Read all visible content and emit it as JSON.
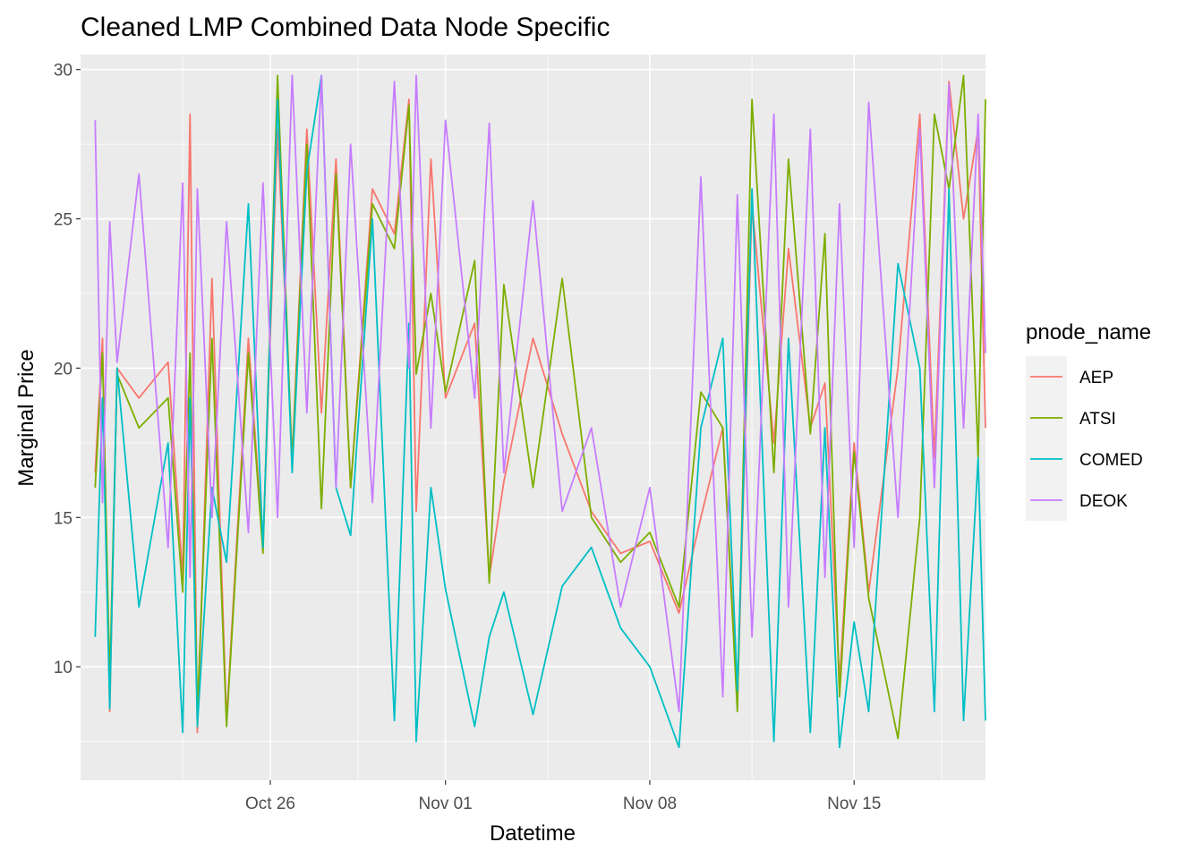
{
  "chart_data": {
    "type": "line",
    "title": "Cleaned LMP Combined Data Node Specific",
    "xlabel": "Datetime",
    "ylabel": "Marginal Price",
    "x_axis": {
      "kind": "date",
      "range": [
        "2024-10-19T12:00",
        "2024-11-19T12:00"
      ],
      "ticks": [
        {
          "date": "2024-10-26T00:00",
          "label": "Oct 26"
        },
        {
          "date": "2024-11-01T00:00",
          "label": "Nov 01"
        },
        {
          "date": "2024-11-08T00:00",
          "label": "Nov 08"
        },
        {
          "date": "2024-11-15T00:00",
          "label": "Nov 15"
        }
      ]
    },
    "y_axis": {
      "range": [
        6.2,
        30.5
      ],
      "ticks": [
        10,
        15,
        20,
        25,
        30
      ]
    },
    "grid": true,
    "panel_background": "#ebebeb",
    "legend": {
      "title": "pnode_name",
      "position": "right"
    },
    "series": [
      {
        "name": "AEP",
        "color": "#F8766D",
        "points": [
          [
            "2024-10-20T00:00",
            16.5
          ],
          [
            "2024-10-20T06:00",
            21.0
          ],
          [
            "2024-10-20T12:00",
            8.5
          ],
          [
            "2024-10-20T18:00",
            20.0
          ],
          [
            "2024-10-21T12:00",
            19.0
          ],
          [
            "2024-10-22T12:00",
            20.2
          ],
          [
            "2024-10-23T00:00",
            13.0
          ],
          [
            "2024-10-23T06:00",
            28.5
          ],
          [
            "2024-10-23T12:00",
            7.8
          ],
          [
            "2024-10-24T00:00",
            23.0
          ],
          [
            "2024-10-24T12:00",
            8.2
          ],
          [
            "2024-10-25T06:00",
            21.0
          ],
          [
            "2024-10-25T18:00",
            14.0
          ],
          [
            "2024-10-26T06:00",
            28.0
          ],
          [
            "2024-10-26T18:00",
            17.0
          ],
          [
            "2024-10-27T06:00",
            28.0
          ],
          [
            "2024-10-27T18:00",
            18.5
          ],
          [
            "2024-10-28T06:00",
            27.0
          ],
          [
            "2024-10-28T18:00",
            16.0
          ],
          [
            "2024-10-29T12:00",
            26.0
          ],
          [
            "2024-10-30T06:00",
            24.5
          ],
          [
            "2024-10-30T18:00",
            29.0
          ],
          [
            "2024-10-31T00:00",
            15.2
          ],
          [
            "2024-10-31T12:00",
            27.0
          ],
          [
            "2024-11-01T00:00",
            19.0
          ],
          [
            "2024-11-02T00:00",
            21.5
          ],
          [
            "2024-11-02T12:00",
            13.0
          ],
          [
            "2024-11-03T00:00",
            16.2
          ],
          [
            "2024-11-04T00:00",
            21.0
          ],
          [
            "2024-11-05T00:00",
            17.8
          ],
          [
            "2024-11-06T00:00",
            15.2
          ],
          [
            "2024-11-07T00:00",
            13.8
          ],
          [
            "2024-11-08T00:00",
            14.2
          ],
          [
            "2024-11-09T00:00",
            11.8
          ],
          [
            "2024-11-09T18:00",
            15.0
          ],
          [
            "2024-11-10T12:00",
            18.0
          ],
          [
            "2024-11-11T00:00",
            8.8
          ],
          [
            "2024-11-11T12:00",
            25.5
          ],
          [
            "2024-11-12T06:00",
            17.5
          ],
          [
            "2024-11-12T18:00",
            24.0
          ],
          [
            "2024-11-13T12:00",
            18.0
          ],
          [
            "2024-11-14T00:00",
            19.5
          ],
          [
            "2024-11-14T12:00",
            9.5
          ],
          [
            "2024-11-15T00:00",
            17.5
          ],
          [
            "2024-11-15T12:00",
            12.5
          ],
          [
            "2024-11-16T12:00",
            20.0
          ],
          [
            "2024-11-17T06:00",
            28.5
          ],
          [
            "2024-11-17T18:00",
            17.0
          ],
          [
            "2024-11-18T06:00",
            29.6
          ],
          [
            "2024-11-18T18:00",
            25.0
          ],
          [
            "2024-11-19T06:00",
            28.0
          ],
          [
            "2024-11-19T12:00",
            18.0
          ]
        ]
      },
      {
        "name": "ATSI",
        "color": "#7CAE00",
        "points": [
          [
            "2024-10-20T00:00",
            16.0
          ],
          [
            "2024-10-20T06:00",
            20.5
          ],
          [
            "2024-10-20T12:00",
            9.5
          ],
          [
            "2024-10-20T18:00",
            19.8
          ],
          [
            "2024-10-21T12:00",
            18.0
          ],
          [
            "2024-10-22T12:00",
            19.0
          ],
          [
            "2024-10-23T00:00",
            12.5
          ],
          [
            "2024-10-23T06:00",
            20.5
          ],
          [
            "2024-10-23T12:00",
            8.5
          ],
          [
            "2024-10-24T00:00",
            21.0
          ],
          [
            "2024-10-24T12:00",
            8.0
          ],
          [
            "2024-10-25T06:00",
            20.5
          ],
          [
            "2024-10-25T18:00",
            13.8
          ],
          [
            "2024-10-26T06:00",
            29.8
          ],
          [
            "2024-10-26T18:00",
            16.8
          ],
          [
            "2024-10-27T06:00",
            27.5
          ],
          [
            "2024-10-27T18:00",
            15.3
          ],
          [
            "2024-10-28T06:00",
            26.5
          ],
          [
            "2024-10-28T18:00",
            16.0
          ],
          [
            "2024-10-29T12:00",
            25.5
          ],
          [
            "2024-10-30T06:00",
            24.0
          ],
          [
            "2024-10-30T18:00",
            28.8
          ],
          [
            "2024-10-31T00:00",
            19.8
          ],
          [
            "2024-10-31T12:00",
            22.5
          ],
          [
            "2024-11-01T00:00",
            19.2
          ],
          [
            "2024-11-02T00:00",
            23.6
          ],
          [
            "2024-11-02T12:00",
            12.8
          ],
          [
            "2024-11-03T00:00",
            22.8
          ],
          [
            "2024-11-04T00:00",
            16.0
          ],
          [
            "2024-11-05T00:00",
            23.0
          ],
          [
            "2024-11-06T00:00",
            15.0
          ],
          [
            "2024-11-07T00:00",
            13.5
          ],
          [
            "2024-11-08T00:00",
            14.5
          ],
          [
            "2024-11-09T00:00",
            12.0
          ],
          [
            "2024-11-09T18:00",
            19.2
          ],
          [
            "2024-11-10T12:00",
            18.0
          ],
          [
            "2024-11-11T00:00",
            8.5
          ],
          [
            "2024-11-11T12:00",
            29.0
          ],
          [
            "2024-11-12T06:00",
            16.5
          ],
          [
            "2024-11-12T18:00",
            27.0
          ],
          [
            "2024-11-13T12:00",
            17.8
          ],
          [
            "2024-11-14T00:00",
            24.5
          ],
          [
            "2024-11-14T12:00",
            9.0
          ],
          [
            "2024-11-15T00:00",
            17.2
          ],
          [
            "2024-11-15T12:00",
            12.3
          ],
          [
            "2024-11-16T12:00",
            7.6
          ],
          [
            "2024-11-17T06:00",
            15.0
          ],
          [
            "2024-11-17T18:00",
            28.5
          ],
          [
            "2024-11-18T06:00",
            26.0
          ],
          [
            "2024-11-18T18:00",
            29.8
          ],
          [
            "2024-11-19T06:00",
            17.0
          ],
          [
            "2024-11-19T12:00",
            29.0
          ]
        ]
      },
      {
        "name": "COMED",
        "color": "#00BFC4",
        "points": [
          [
            "2024-10-20T00:00",
            11.0
          ],
          [
            "2024-10-20T06:00",
            19.0
          ],
          [
            "2024-10-20T12:00",
            8.6
          ],
          [
            "2024-10-20T18:00",
            20.0
          ],
          [
            "2024-10-21T12:00",
            12.0
          ],
          [
            "2024-10-22T12:00",
            17.5
          ],
          [
            "2024-10-23T00:00",
            7.8
          ],
          [
            "2024-10-23T06:00",
            19.0
          ],
          [
            "2024-10-23T12:00",
            8.0
          ],
          [
            "2024-10-24T00:00",
            16.0
          ],
          [
            "2024-10-24T12:00",
            13.5
          ],
          [
            "2024-10-25T06:00",
            25.5
          ],
          [
            "2024-10-25T18:00",
            14.0
          ],
          [
            "2024-10-26T06:00",
            29.0
          ],
          [
            "2024-10-26T18:00",
            16.5
          ],
          [
            "2024-10-27T06:00",
            26.6
          ],
          [
            "2024-10-27T18:00",
            29.8
          ],
          [
            "2024-10-28T06:00",
            16.0
          ],
          [
            "2024-10-28T18:00",
            14.4
          ],
          [
            "2024-10-29T12:00",
            25.0
          ],
          [
            "2024-10-30T06:00",
            8.2
          ],
          [
            "2024-10-30T18:00",
            21.5
          ],
          [
            "2024-10-31T00:00",
            7.5
          ],
          [
            "2024-10-31T12:00",
            16.0
          ],
          [
            "2024-11-01T00:00",
            12.6
          ],
          [
            "2024-11-02T00:00",
            8.0
          ],
          [
            "2024-11-02T12:00",
            11.0
          ],
          [
            "2024-11-03T00:00",
            12.5
          ],
          [
            "2024-11-04T00:00",
            8.4
          ],
          [
            "2024-11-05T00:00",
            12.7
          ],
          [
            "2024-11-06T00:00",
            14.0
          ],
          [
            "2024-11-07T00:00",
            11.3
          ],
          [
            "2024-11-08T00:00",
            10.0
          ],
          [
            "2024-11-09T00:00",
            7.3
          ],
          [
            "2024-11-09T18:00",
            18.0
          ],
          [
            "2024-11-10T12:00",
            21.0
          ],
          [
            "2024-11-11T00:00",
            9.2
          ],
          [
            "2024-11-11T12:00",
            26.0
          ],
          [
            "2024-11-12T06:00",
            7.5
          ],
          [
            "2024-11-12T18:00",
            21.0
          ],
          [
            "2024-11-13T12:00",
            7.8
          ],
          [
            "2024-11-14T00:00",
            18.0
          ],
          [
            "2024-11-14T12:00",
            7.3
          ],
          [
            "2024-11-15T00:00",
            11.5
          ],
          [
            "2024-11-15T12:00",
            8.5
          ],
          [
            "2024-11-16T12:00",
            23.5
          ],
          [
            "2024-11-17T06:00",
            20.0
          ],
          [
            "2024-11-17T18:00",
            8.5
          ],
          [
            "2024-11-18T06:00",
            26.0
          ],
          [
            "2024-11-18T18:00",
            8.2
          ],
          [
            "2024-11-19T06:00",
            17.0
          ],
          [
            "2024-11-19T12:00",
            8.2
          ]
        ]
      },
      {
        "name": "DEOK",
        "color": "#C77CFF",
        "points": [
          [
            "2024-10-20T00:00",
            28.3
          ],
          [
            "2024-10-20T06:00",
            15.5
          ],
          [
            "2024-10-20T12:00",
            24.9
          ],
          [
            "2024-10-20T18:00",
            20.2
          ],
          [
            "2024-10-21T12:00",
            26.5
          ],
          [
            "2024-10-22T12:00",
            14.0
          ],
          [
            "2024-10-23T00:00",
            26.2
          ],
          [
            "2024-10-23T06:00",
            13.0
          ],
          [
            "2024-10-23T12:00",
            26.0
          ],
          [
            "2024-10-24T00:00",
            15.0
          ],
          [
            "2024-10-24T12:00",
            24.9
          ],
          [
            "2024-10-25T06:00",
            14.5
          ],
          [
            "2024-10-25T18:00",
            26.2
          ],
          [
            "2024-10-26T06:00",
            15.0
          ],
          [
            "2024-10-26T18:00",
            29.8
          ],
          [
            "2024-10-27T06:00",
            18.5
          ],
          [
            "2024-10-27T18:00",
            29.8
          ],
          [
            "2024-10-28T06:00",
            16.0
          ],
          [
            "2024-10-28T18:00",
            27.5
          ],
          [
            "2024-10-29T12:00",
            15.5
          ],
          [
            "2024-10-30T06:00",
            29.6
          ],
          [
            "2024-10-30T18:00",
            20.0
          ],
          [
            "2024-10-31T00:00",
            29.8
          ],
          [
            "2024-10-31T12:00",
            18.0
          ],
          [
            "2024-11-01T00:00",
            28.3
          ],
          [
            "2024-11-02T00:00",
            19.0
          ],
          [
            "2024-11-02T12:00",
            28.2
          ],
          [
            "2024-11-03T00:00",
            16.5
          ],
          [
            "2024-11-04T00:00",
            25.6
          ],
          [
            "2024-11-05T00:00",
            15.2
          ],
          [
            "2024-11-06T00:00",
            18.0
          ],
          [
            "2024-11-07T00:00",
            12.0
          ],
          [
            "2024-11-08T00:00",
            16.0
          ],
          [
            "2024-11-09T00:00",
            8.5
          ],
          [
            "2024-11-09T18:00",
            26.4
          ],
          [
            "2024-11-10T12:00",
            9.0
          ],
          [
            "2024-11-11T00:00",
            25.8
          ],
          [
            "2024-11-11T12:00",
            11.0
          ],
          [
            "2024-11-12T06:00",
            28.5
          ],
          [
            "2024-11-12T18:00",
            12.0
          ],
          [
            "2024-11-13T12:00",
            28.0
          ],
          [
            "2024-11-14T00:00",
            13.0
          ],
          [
            "2024-11-14T12:00",
            25.5
          ],
          [
            "2024-11-15T00:00",
            14.0
          ],
          [
            "2024-11-15T12:00",
            28.9
          ],
          [
            "2024-11-16T12:00",
            15.0
          ],
          [
            "2024-11-17T06:00",
            28.0
          ],
          [
            "2024-11-17T18:00",
            16.0
          ],
          [
            "2024-11-18T06:00",
            29.5
          ],
          [
            "2024-11-18T18:00",
            18.0
          ],
          [
            "2024-11-19T06:00",
            28.5
          ],
          [
            "2024-11-19T12:00",
            20.5
          ]
        ]
      }
    ]
  }
}
